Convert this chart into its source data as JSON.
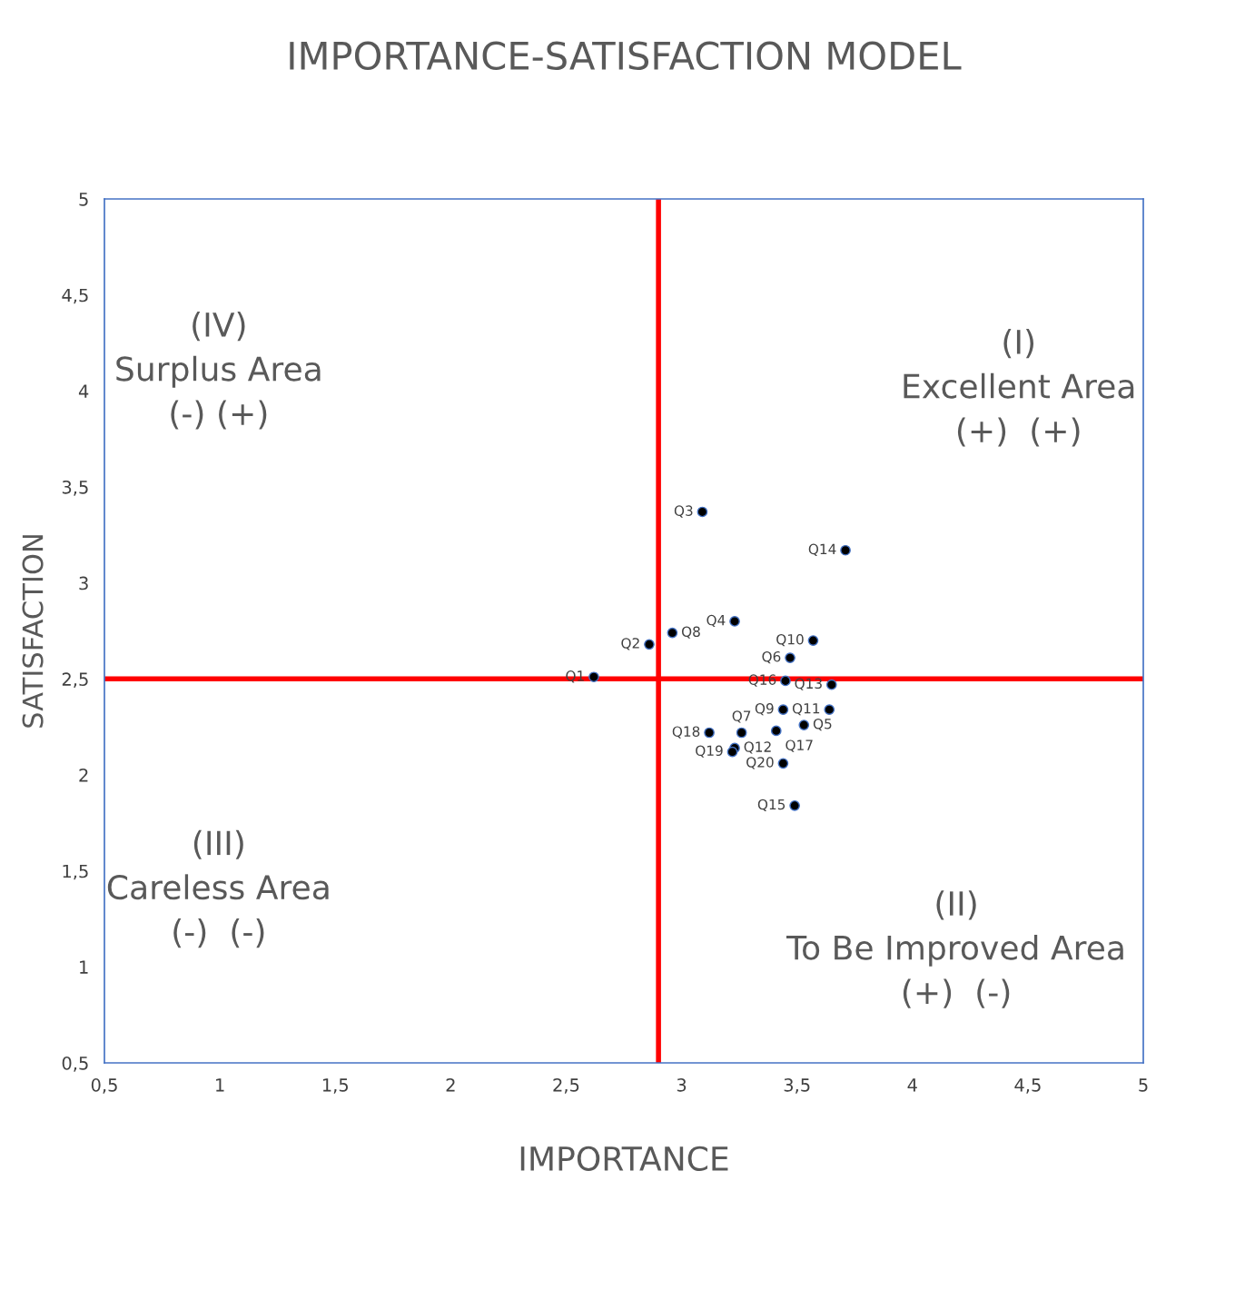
{
  "chart_data": {
    "type": "scatter",
    "title": "IMPORTANCE-SATISFACTION MODEL",
    "xlabel": "IMPORTANCE",
    "ylabel": "SATISFACTION",
    "xlim": [
      0.5,
      5
    ],
    "ylim": [
      0.5,
      5
    ],
    "xticks": [
      {
        "value": 0.5,
        "label": "0,5"
      },
      1,
      {
        "value": 1.5,
        "label": "1,5"
      },
      2,
      {
        "value": 2.5,
        "label": "2,5"
      },
      3,
      {
        "value": 3.5,
        "label": "3,5"
      },
      4,
      {
        "value": 4.5,
        "label": "4,5"
      },
      5
    ],
    "yticks": [
      {
        "value": 0.5,
        "label": "0,5"
      },
      1,
      {
        "value": 1.5,
        "label": "1,5"
      },
      2,
      {
        "value": 2.5,
        "label": "2,5"
      },
      3,
      {
        "value": 3.5,
        "label": "3,5"
      },
      4,
      {
        "value": 4.5,
        "label": "4,5"
      },
      5
    ],
    "marker": "circle",
    "grid": false,
    "legend": false,
    "series": [
      {
        "name": "Q1",
        "color": "#000000",
        "x": [
          2.62
        ],
        "values": [
          2.51
        ]
      },
      {
        "name": "Q2",
        "color": "#000000",
        "x": [
          2.86
        ],
        "values": [
          2.68
        ]
      },
      {
        "name": "Q3",
        "color": "#000000",
        "x": [
          3.09
        ],
        "values": [
          3.37
        ]
      },
      {
        "name": "Q4",
        "color": "#000000",
        "x": [
          3.23
        ],
        "values": [
          2.8
        ]
      },
      {
        "name": "Q5",
        "color": "#000000",
        "x": [
          3.53
        ],
        "values": [
          2.26
        ]
      },
      {
        "name": "Q6",
        "color": "#000000",
        "x": [
          3.47
        ],
        "values": [
          2.61
        ]
      },
      {
        "name": "Q7",
        "color": "#000000",
        "x": [
          3.26
        ],
        "values": [
          2.22
        ]
      },
      {
        "name": "Q8",
        "color": "#000000",
        "x": [
          2.96
        ],
        "values": [
          2.74
        ]
      },
      {
        "name": "Q9",
        "color": "#000000",
        "x": [
          3.44
        ],
        "values": [
          2.34
        ]
      },
      {
        "name": "Q10",
        "color": "#000000",
        "x": [
          3.57
        ],
        "values": [
          2.7
        ]
      },
      {
        "name": "Q11",
        "color": "#000000",
        "x": [
          3.64
        ],
        "values": [
          2.34
        ]
      },
      {
        "name": "Q12",
        "color": "#000000",
        "x": [
          3.23
        ],
        "values": [
          2.14
        ]
      },
      {
        "name": "Q13",
        "color": "#000000",
        "x": [
          3.65
        ],
        "values": [
          2.47
        ]
      },
      {
        "name": "Q14",
        "color": "#000000",
        "x": [
          3.71
        ],
        "values": [
          3.17
        ]
      },
      {
        "name": "Q15",
        "color": "#000000",
        "x": [
          3.49
        ],
        "values": [
          1.84
        ]
      },
      {
        "name": "Q16",
        "color": "#000000",
        "x": [
          3.45
        ],
        "values": [
          2.49
        ]
      },
      {
        "name": "Q17",
        "color": "#000000",
        "x": [
          3.41
        ],
        "values": [
          2.23
        ]
      },
      {
        "name": "Q18",
        "color": "#000000",
        "x": [
          3.12
        ],
        "values": [
          2.22
        ]
      },
      {
        "name": "Q19",
        "color": "#000000",
        "x": [
          3.22
        ],
        "values": [
          2.12
        ]
      },
      {
        "name": "Q20",
        "color": "#000000",
        "x": [
          3.44
        ],
        "values": [
          2.06
        ]
      }
    ],
    "ref_lines": [
      {
        "axis": "x",
        "value": 2.9,
        "color": "#ff0000"
      },
      {
        "axis": "y",
        "value": 2.5,
        "color": "#ff0000"
      }
    ],
    "annotations": [
      "(IV)\nSurplus Area\n(-) (+)",
      "(I)\nExcellent Area\n(+)  (+)",
      "(III)\nCareless Area\n(-)  (-)",
      "(II)\nTo Be Improved Area\n(+)  (-)"
    ]
  }
}
